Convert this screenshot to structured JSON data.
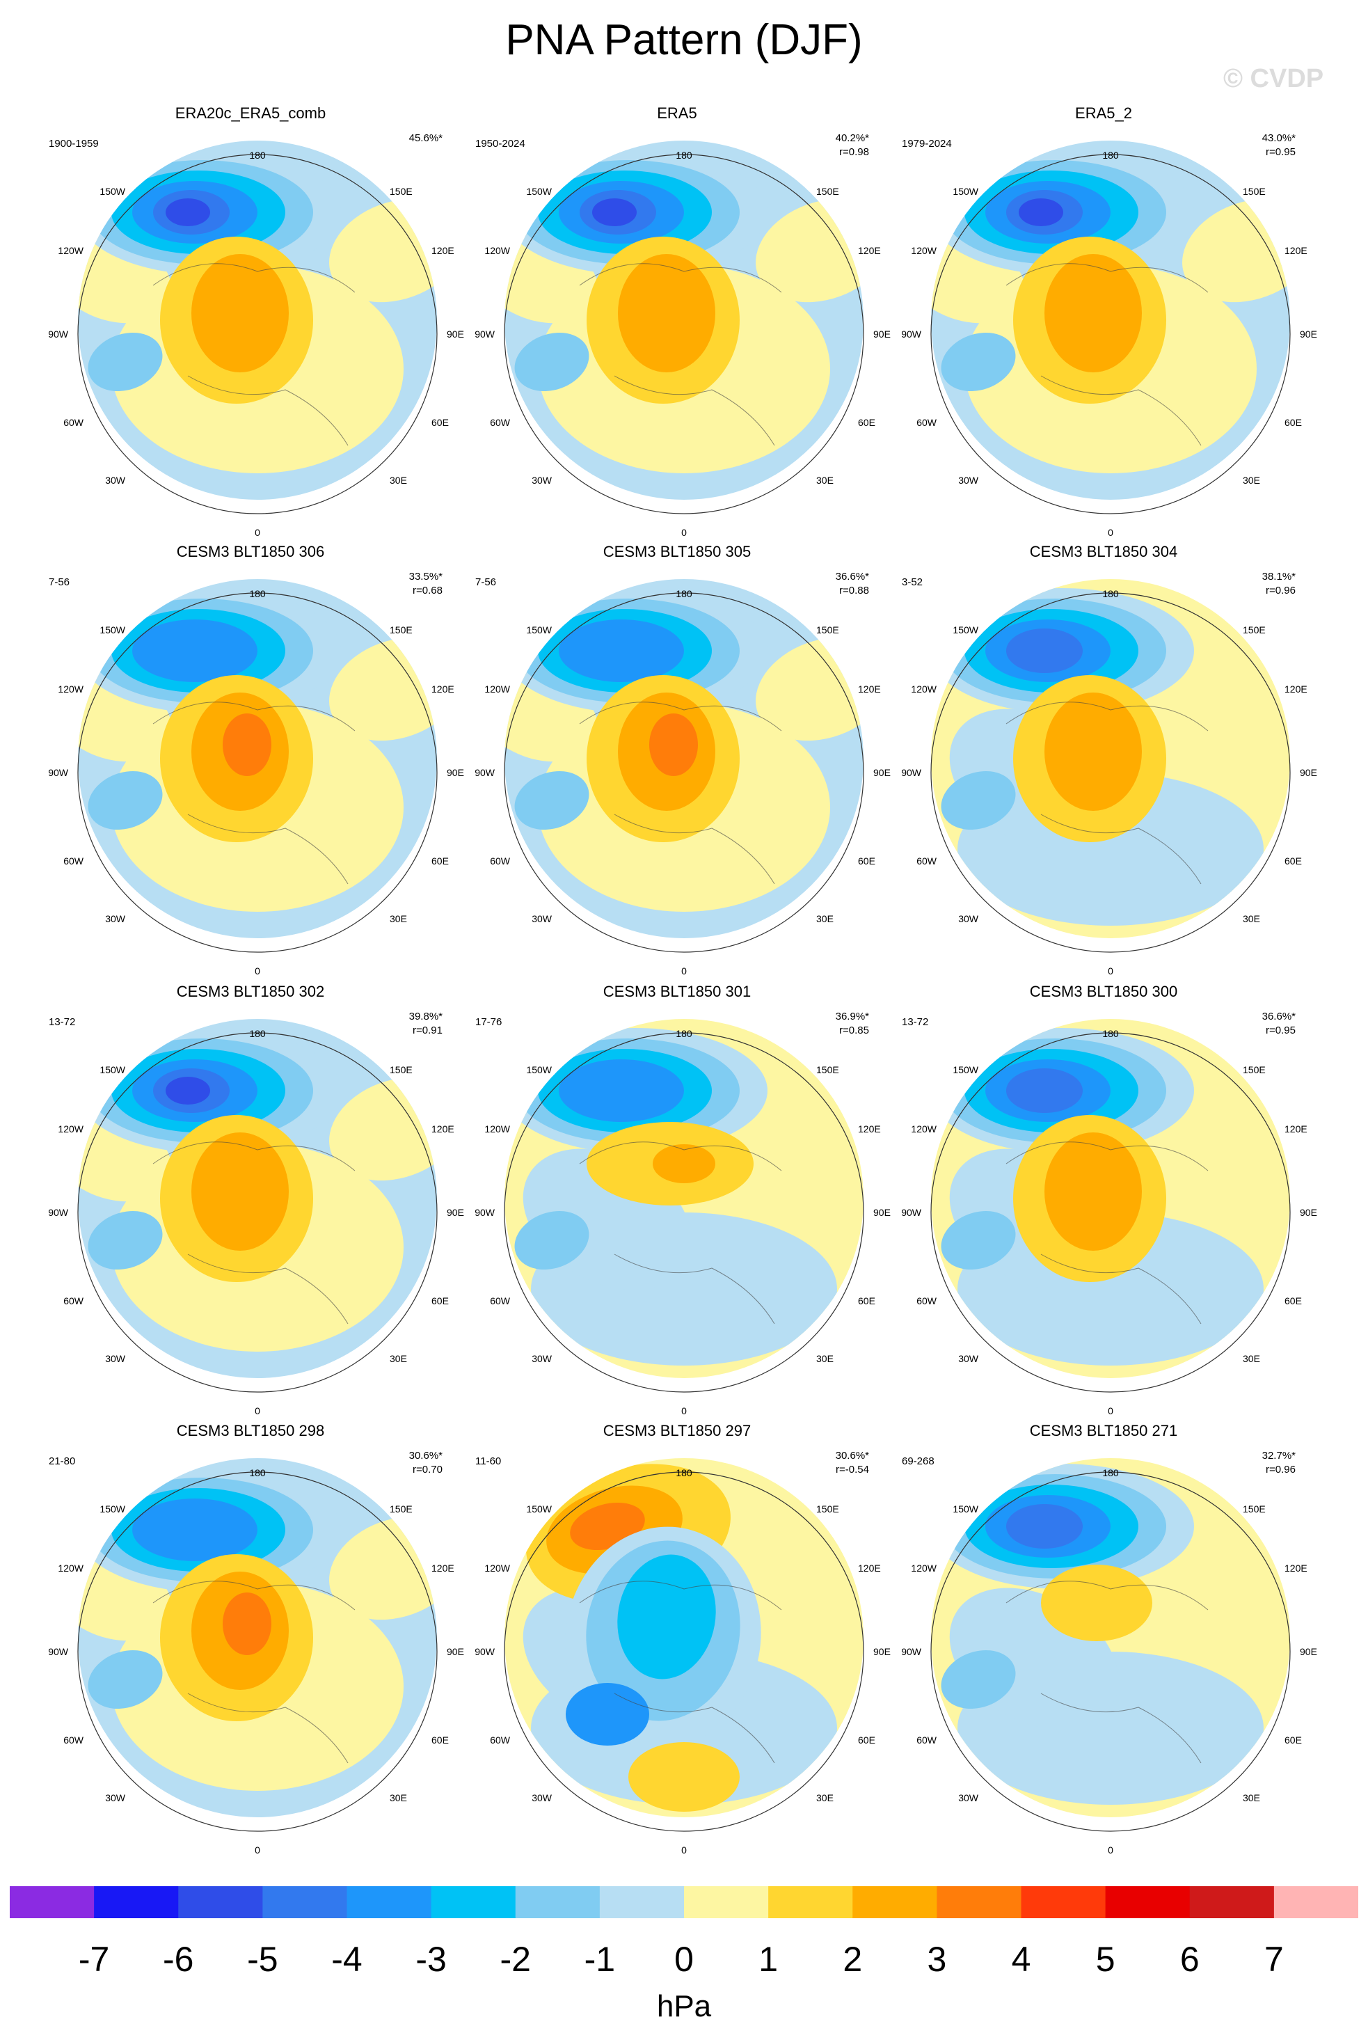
{
  "title": "PNA Pattern (DJF)",
  "watermark": "© CVDP",
  "colorbar": {
    "unit": "hPa",
    "levels": [
      "-7",
      "-6",
      "-5",
      "-4",
      "-3",
      "-2",
      "-1",
      "0",
      "1",
      "2",
      "3",
      "4",
      "5",
      "6",
      "7"
    ],
    "colors": [
      "#8b2be2",
      "#1818f5",
      "#2f4de8",
      "#3279ee",
      "#1e96fa",
      "#00c2f5",
      "#80ccf2",
      "#b7def3",
      "#fdf6a2",
      "#ffd630",
      "#ffac00",
      "#ff7d0a",
      "#ff3a0a",
      "#e80000",
      "#cf1a1a",
      "#ffb4b4"
    ]
  },
  "lon_labels": {
    "top": "180",
    "bottom": "0",
    "left": "90W",
    "right": "90E",
    "upper_left_1": "150W",
    "upper_left_2": "120W",
    "lower_left_1": "60W",
    "lower_left_2": "30W",
    "upper_right_1": "150E",
    "upper_right_2": "120E",
    "lower_right_1": "60E",
    "lower_right_2": "30E"
  },
  "panels": [
    {
      "title": "ERA20c_ERA5_comb",
      "period": "1900-1959",
      "pct": "45.6%*",
      "r": ""
    },
    {
      "title": "ERA5",
      "period": "1950-2024",
      "pct": "40.2%*",
      "r": "r=0.98"
    },
    {
      "title": "ERA5_2",
      "period": "1979-2024",
      "pct": "43.0%*",
      "r": "r=0.95"
    },
    {
      "title": "CESM3 BLT1850 306",
      "period": "7-56",
      "pct": "33.5%*",
      "r": "r=0.68"
    },
    {
      "title": "CESM3 BLT1850 305",
      "period": "7-56",
      "pct": "36.6%*",
      "r": "r=0.88"
    },
    {
      "title": "CESM3 BLT1850 304",
      "period": "3-52",
      "pct": "38.1%*",
      "r": "r=0.96"
    },
    {
      "title": "CESM3 BLT1850 302",
      "period": "13-72",
      "pct": "39.8%*",
      "r": "r=0.91"
    },
    {
      "title": "CESM3 BLT1850 301",
      "period": "17-76",
      "pct": "36.9%*",
      "r": "r=0.85"
    },
    {
      "title": "CESM3 BLT1850 300",
      "period": "13-72",
      "pct": "36.6%*",
      "r": "r=0.95"
    },
    {
      "title": "CESM3 BLT1850 298",
      "period": "21-80",
      "pct": "30.6%*",
      "r": "r=0.70"
    },
    {
      "title": "CESM3 BLT1850 297",
      "period": "11-60",
      "pct": "30.6%*",
      "r": "r=-0.54"
    },
    {
      "title": "CESM3 BLT1850 271",
      "period": "69-268",
      "pct": "32.7%*",
      "r": "r=0.96"
    }
  ]
}
